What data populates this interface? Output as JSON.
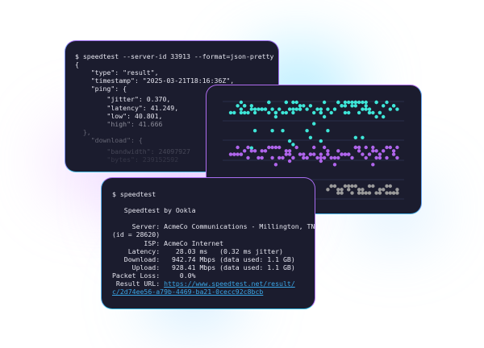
{
  "json_terminal": {
    "lines": [
      "$ speedtest --server-id 33913 --format=json-pretty",
      "{",
      "    \"type\": \"result\",",
      "    \"timestamp\": \"2025-03-21T18:16:36Z\",",
      "    \"ping\": {",
      "        \"jitter\": 0.370,",
      "        \"latency\": 41.249,",
      "        \"low\": 40.801,",
      "        \"high\": 41.666",
      "  },",
      "    \"download\": {",
      "        \"bandwidth\": 24097927",
      "        \"bytes\": 239152592"
    ]
  },
  "cli_terminal": {
    "command": "$ speedtest",
    "title": "   Speedtest by Ookla",
    "server_line1": "     Server: AcmeCo Communications - Millington, TN",
    "server_line2": "(id = 28620)",
    "isp": "        ISP: AcmeCo Internet",
    "latency": "    Latency:    28.03 ms   (0.32 ms jitter)",
    "download": "   Download:   942.74 Mbps (data used: 1.1 GB)",
    "upload": "     Upload:   928.41 Mbps (data used: 1.1 GB)",
    "packet_loss": "Packet Loss:     0.0%",
    "result_label": " Result URL: ",
    "result_url_1": "https://www.speedtest.net/result/",
    "result_url_2": "c/2d74ee56-a79b-4469-ba21-0cecc92c8bcb"
  },
  "dot_chart": {
    "colors": {
      "series1": "#3ee6d8",
      "series2": "#b065ec",
      "series3": "#9a9a9a",
      "grid": "#2a2e4a",
      "background": "#1b1c2e"
    }
  }
}
